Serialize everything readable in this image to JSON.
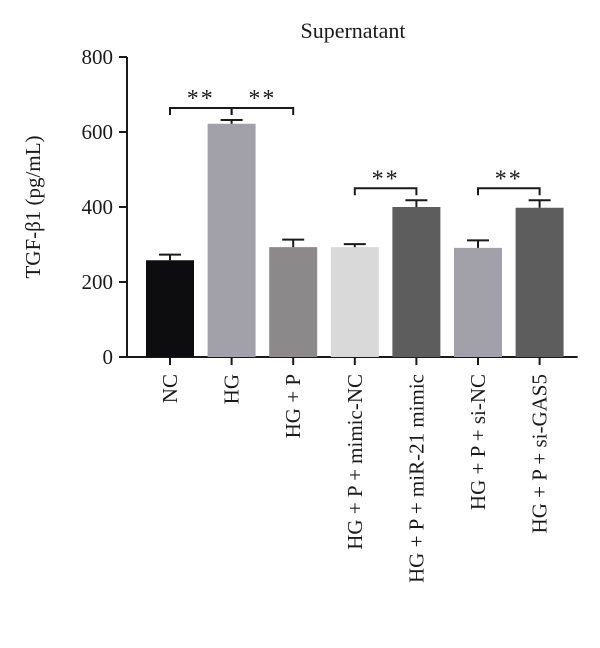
{
  "chart_data": {
    "type": "bar",
    "title": "Supernatant",
    "xlabel": "",
    "ylabel": "TGF-β1 (pg/mL)",
    "ylim": [
      0,
      800
    ],
    "yticks": [
      0,
      200,
      400,
      600,
      800
    ],
    "grid": false,
    "legend": "none",
    "categories": [
      "NC",
      "HG",
      "HG + P",
      "HG + P + mimic-NC",
      "HG + P + miR-21 mimic",
      "HG + P + si-NC",
      "HG + P + si-GAS5"
    ],
    "values": [
      258,
      622,
      293,
      293,
      400,
      291,
      398
    ],
    "errors": [
      15,
      10,
      20,
      8,
      18,
      20,
      20
    ],
    "bar_colors": [
      "#0d0d0f",
      "#a2a1a9",
      "#8c898b",
      "#d9d9d9",
      "#5c5d5c",
      "#a2a1a9",
      "#5c5d5c"
    ],
    "significance": [
      {
        "from": 0,
        "to": 1,
        "label": "**"
      },
      {
        "from": 1,
        "to": 2,
        "label": "**"
      },
      {
        "from": 3,
        "to": 4,
        "label": "**"
      },
      {
        "from": 5,
        "to": 6,
        "label": "**"
      }
    ]
  }
}
